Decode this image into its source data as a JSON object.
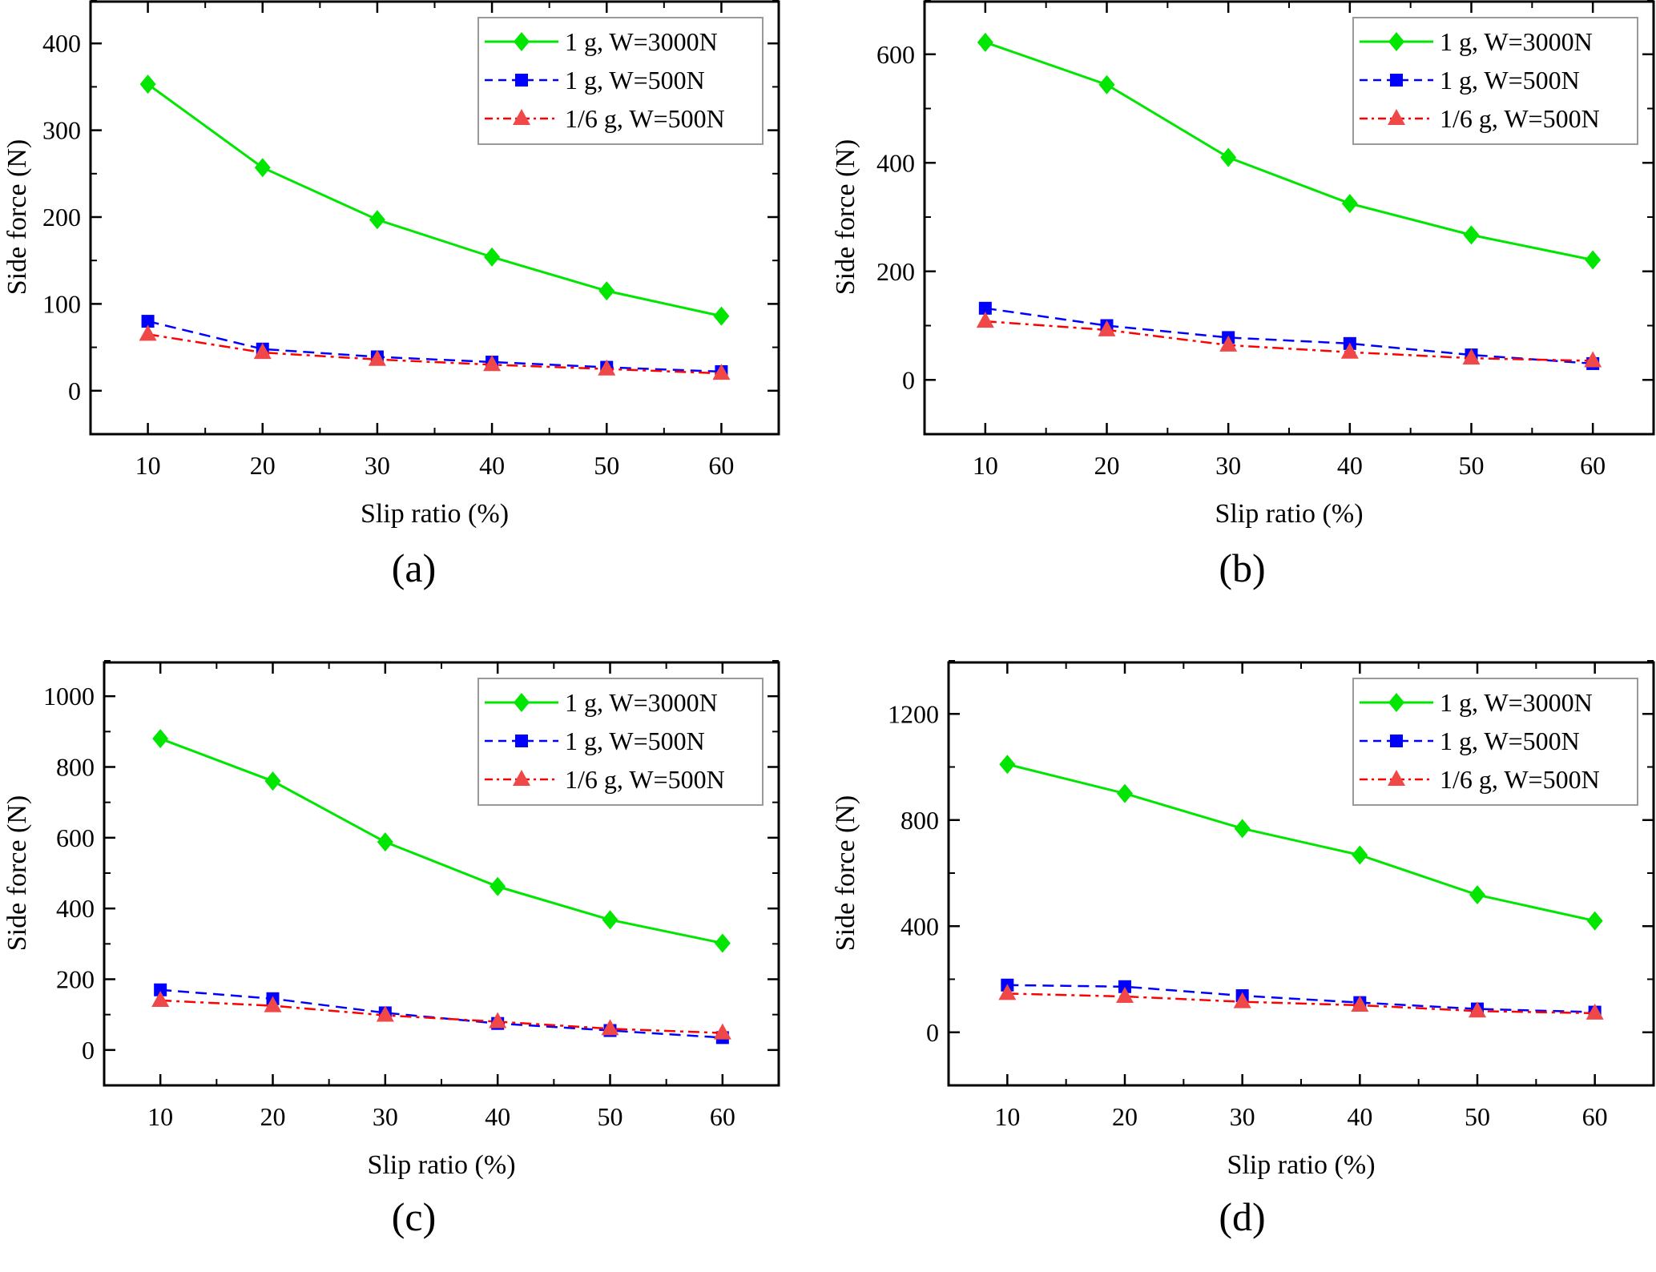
{
  "chart_data": [
    {
      "type": "line",
      "panel_label": "(a)",
      "xlabel": "Slip ratio (%)",
      "ylabel": "Side force (N)",
      "x": [
        10,
        20,
        30,
        40,
        50,
        60
      ],
      "xlim": [
        5,
        65
      ],
      "ylim": [
        -50,
        450
      ],
      "yticks": [
        0,
        100,
        200,
        300,
        400
      ],
      "xticks": [
        10,
        20,
        30,
        40,
        50,
        60
      ],
      "legend_position": "top-right",
      "series": [
        {
          "name": "1 g, W=3000N",
          "color": "#00e600",
          "marker": "diamond",
          "line": "solid",
          "values": [
            353,
            257,
            197,
            154,
            115,
            86
          ]
        },
        {
          "name": "1 g, W=500N",
          "color": "#0000ff",
          "marker": "square",
          "line": "dashed",
          "values": [
            80,
            48,
            39,
            33,
            27,
            22
          ]
        },
        {
          "name": "1/6 g, W=500N",
          "color": "#ff0000",
          "marker_color": "#f04848",
          "marker": "triangle",
          "line": "dashdot",
          "values": [
            65,
            44,
            36,
            30,
            25,
            20
          ]
        }
      ]
    },
    {
      "type": "line",
      "panel_label": "(b)",
      "xlabel": "Slip ratio (%)",
      "ylabel": "Side force (N)",
      "x": [
        10,
        20,
        30,
        40,
        50,
        60
      ],
      "xlim": [
        5,
        65
      ],
      "ylim": [
        -100,
        700
      ],
      "yticks": [
        0,
        200,
        400,
        600
      ],
      "xticks": [
        10,
        20,
        30,
        40,
        50,
        60
      ],
      "legend_position": "top-right",
      "series": [
        {
          "name": "1 g, W=3000N",
          "color": "#00e600",
          "marker": "diamond",
          "line": "solid",
          "values": [
            622,
            544,
            410,
            325,
            267,
            221
          ]
        },
        {
          "name": "1 g, W=500N",
          "color": "#0000ff",
          "marker": "square",
          "line": "dashed",
          "values": [
            132,
            100,
            78,
            67,
            46,
            30
          ]
        },
        {
          "name": "1/6 g, W=500N",
          "color": "#ff0000",
          "marker_color": "#f04848",
          "marker": "triangle",
          "line": "dashdot",
          "values": [
            108,
            92,
            64,
            51,
            40,
            35
          ]
        }
      ]
    },
    {
      "type": "line",
      "panel_label": "(c)",
      "xlabel": "Slip ratio (%)",
      "ylabel": "Side force (N)",
      "x": [
        10,
        20,
        30,
        40,
        50,
        60
      ],
      "xlim": [
        5,
        65
      ],
      "ylim": [
        -100,
        1100
      ],
      "yticks": [
        0,
        200,
        400,
        600,
        800,
        1000
      ],
      "xticks": [
        10,
        20,
        30,
        40,
        50,
        60
      ],
      "legend_position": "top-right",
      "series": [
        {
          "name": "1 g, W=3000N",
          "color": "#00e600",
          "marker": "diamond",
          "line": "solid",
          "values": [
            880,
            760,
            588,
            462,
            368,
            302
          ]
        },
        {
          "name": "1 g, W=500N",
          "color": "#0000ff",
          "marker": "square",
          "line": "dashed",
          "values": [
            170,
            145,
            105,
            75,
            55,
            35
          ]
        },
        {
          "name": "1/6 g, W=500N",
          "color": "#ff0000",
          "marker_color": "#f04848",
          "marker": "triangle",
          "line": "dashdot",
          "values": [
            140,
            125,
            98,
            80,
            60,
            48
          ]
        }
      ]
    },
    {
      "type": "line",
      "panel_label": "(d)",
      "xlabel": "Slip ratio (%)",
      "ylabel": "Side force (N)",
      "x": [
        10,
        20,
        30,
        40,
        50,
        60
      ],
      "xlim": [
        5,
        65
      ],
      "ylim": [
        -200,
        1400
      ],
      "yticks": [
        0,
        400,
        800,
        1200
      ],
      "xticks": [
        10,
        20,
        30,
        40,
        50,
        60
      ],
      "legend_position": "top-right",
      "series": [
        {
          "name": "1 g, W=3000N",
          "color": "#00e600",
          "marker": "diamond",
          "line": "solid",
          "values": [
            1010,
            900,
            768,
            668,
            518,
            420
          ]
        },
        {
          "name": "1 g, W=500N",
          "color": "#0000ff",
          "marker": "square",
          "line": "dashed",
          "values": [
            178,
            172,
            138,
            112,
            88,
            76
          ]
        },
        {
          "name": "1/6 g, W=500N",
          "color": "#ff0000",
          "marker_color": "#f04848",
          "marker": "triangle",
          "line": "dashdot",
          "values": [
            146,
            135,
            115,
            102,
            80,
            72
          ]
        }
      ]
    }
  ]
}
